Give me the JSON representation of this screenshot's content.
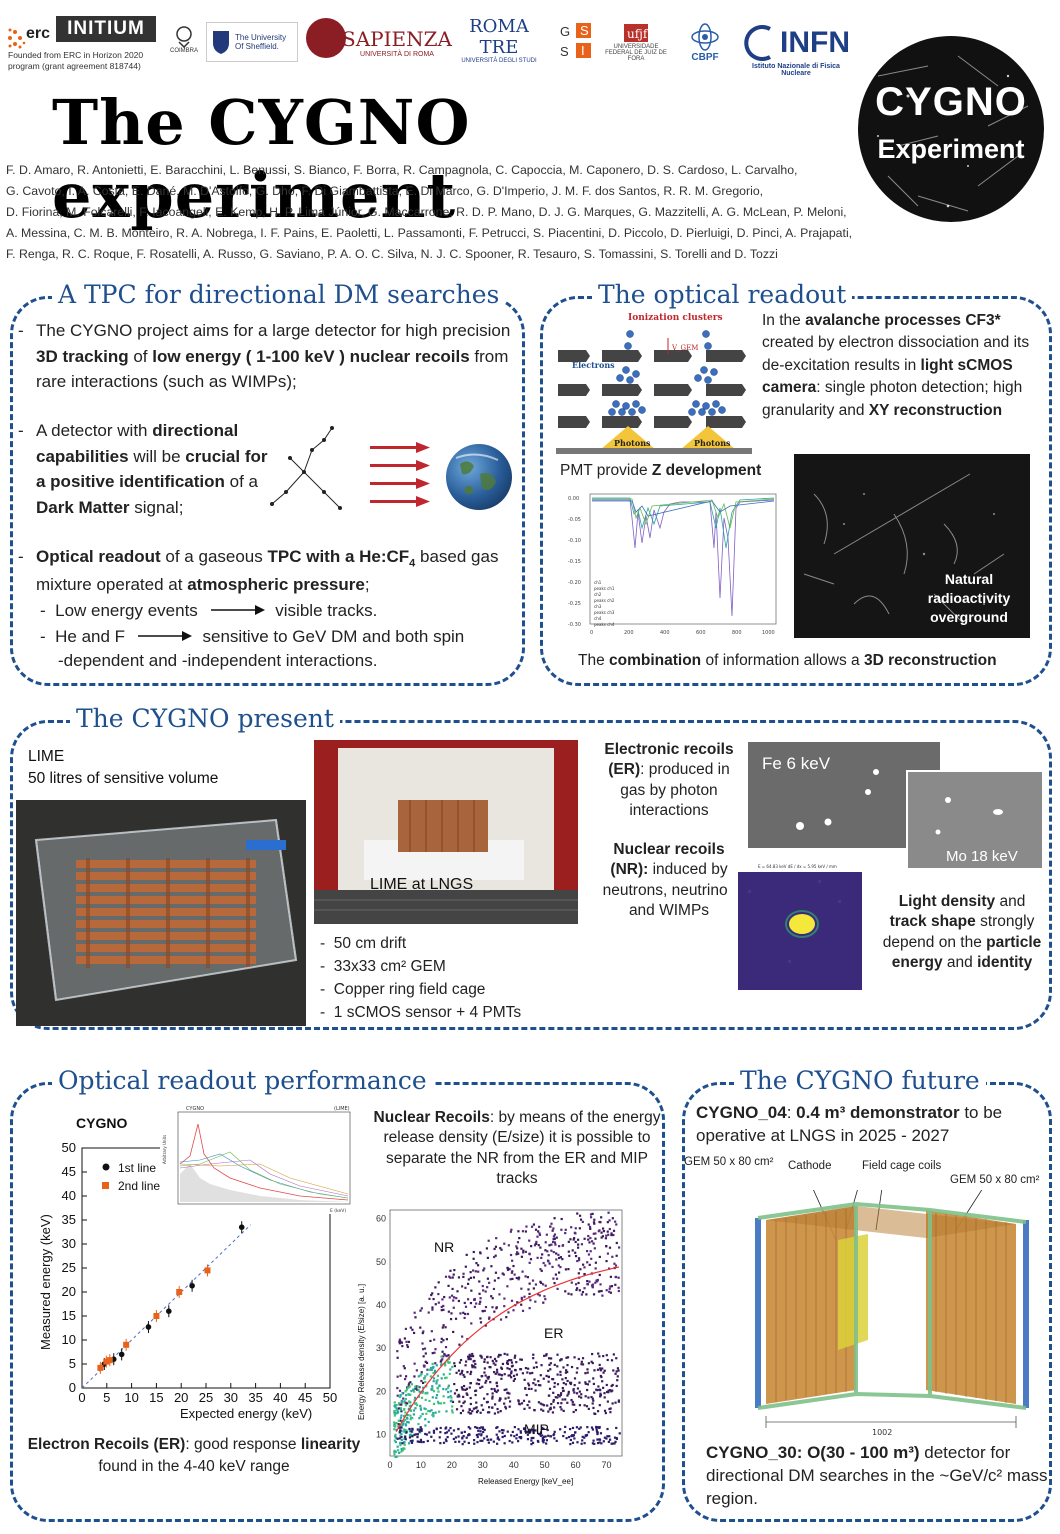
{
  "header": {
    "erc_label": "erc",
    "initium_label": "INITIUM",
    "funding_note": "Founded from ERC in Horizon 2020 program (grant agreement 818744)",
    "logos": [
      {
        "name": "coimbra",
        "text": "COIMBRA"
      },
      {
        "name": "sheffield",
        "text": "The University Of Sheffield."
      },
      {
        "name": "sapienza",
        "text": "SAPIENZA",
        "sub": "UNIVERSITÀ DI ROMA"
      },
      {
        "name": "romatre",
        "text": "ROMA TRE",
        "sub": "UNIVERSITÀ DEGLI STUDI"
      },
      {
        "name": "gssi",
        "text": "G S S I"
      },
      {
        "name": "ufjf",
        "text": "UNIVERSIDADE FEDERAL DE JUIZ DE FORA"
      },
      {
        "name": "cbpf",
        "text": "CBPF"
      },
      {
        "name": "infn",
        "text": "INFN",
        "sub": "Istituto Nazionale di Fisica Nucleare"
      }
    ],
    "title": "The CYGNO experiment",
    "badge_line1": "CYGNO",
    "badge_line2": "Experiment",
    "authors": [
      "F. D. Amaro, R. Antonietti, E. Baracchini, L. Benussi, S. Bianco, F. Borra, R. Campagnola, C. Capoccia, M. Caponero, D. S. Cardoso, L. Carvalho,",
      "G. Cavoto, I. A. Costa, E. Dané, M. D'Astolfo, G. Dho, F. Di Giambattista, E. Di Marco, G. D'Imperio, J. M. F. dos Santos,  R. R. M. Gregorio,",
      "D. Fiorina, M. Folcarelli, F. Iacoangeli, E. Kemp, H. P. Lima Júnior, G. Maccarrone, R. D. P. Mano, D. J. G. Marques, G. Mazzitelli, A. G. McLean, P. Meloni,",
      "A. Messina, C. M. B. Monteiro, R. A. Nobrega, I. F. Pains, E. Paoletti, L. Passamonti, F. Petrucci, S. Piacentini, D. Piccolo, D. Pierluigi, D. Pinci, A. Prajapati,",
      "F. Renga, R. C. Roque, F. Rosatelli, A. Russo, G. Saviano, P. A. O. C. Silva, N. J. C. Spooner, R. Tesauro, S. Tomassini, S. Torelli and D. Tozzi"
    ]
  },
  "tpc": {
    "title": "A TPC for directional DM searches",
    "p1_a": "The CYGNO project aims for a large detector for high precision ",
    "p1_b": "3D tracking",
    "p1_c": " of ",
    "p1_d": "low energy ( 1-100 keV ) nuclear recoils",
    "p1_e": " from rare interactions (such as WIMPs);",
    "p2_a": "A detector with ",
    "p2_b": "directional capabilities",
    "p2_c": " will be ",
    "p2_d": "crucial for a positive identification",
    "p2_e": " of a ",
    "p2_f": "Dark Matter",
    "p2_g": " signal;",
    "p3_a": "Optical readout",
    "p3_b": " of a gaseous ",
    "p3_c": "TPC with a He:CF",
    "p3_sub": "4",
    "p3_d": " based gas mixture operated at ",
    "p3_e": "atmospheric pressure",
    "p3_f": ";",
    "sub1_a": "Low energy events",
    "sub1_b": "visible tracks.",
    "sub2_a": "He and F",
    "sub2_b": "sensitive to GeV DM and both spin",
    "sub2_c": "-dependent and -independent interactions."
  },
  "optical": {
    "title": "The optical readout",
    "diagram_title": "Ionization clusters",
    "diagram_electrons": "Electrons",
    "diagram_vgem": "V_GEM",
    "diagram_photons1": "Photons",
    "diagram_photons2": "Photons",
    "text_a": "In the ",
    "text_b": "avalanche processes CF3*",
    "text_c": " created by electron dissociation and its de-excitation results in ",
    "text_d": "light sCMOS camera",
    "text_e": ": single photon detection; high granularity and ",
    "text_f": "XY reconstruction",
    "pmt_a": "PMT provide ",
    "pmt_b": "Z development",
    "natural": "Natural radioactivity overground",
    "combo_a": "The ",
    "combo_b": "combination",
    "combo_c": " of information allows a ",
    "combo_d": "3D reconstruction",
    "pmt_legend": [
      "ch1",
      "peaks ch1",
      "ch2",
      "peaks ch2",
      "ch3",
      "peaks ch3",
      "ch4",
      "peaks ch4"
    ],
    "pmt_yticks": [
      "0.00",
      "-0.05",
      "-0.10",
      "-0.15",
      "-0.20",
      "-0.25",
      "-0.30"
    ],
    "pmt_xticks": [
      "0",
      "200",
      "400",
      "600",
      "800",
      "1000"
    ]
  },
  "present": {
    "title": "The CYGNO present",
    "lime": "LIME",
    "lime_vol": "50 litres of sensitive volume",
    "lngs": "LIME at LNGS",
    "specs": [
      "50 cm drift",
      "33x33 cm² GEM",
      "Copper ring field cage",
      "1 sCMOS sensor + 4 PMTs"
    ],
    "er_a": "Electronic recoils (ER)",
    "er_b": ": produced in gas by photon interactions",
    "nr_a": "Nuclear recoils (NR):",
    "nr_b": " induced by neutrons, neutrinos and WIMPs",
    "fe": "Fe 6 keV",
    "mo": "Mo 18 keV",
    "light_a": "Light density",
    "light_b": " and ",
    "light_c": "track shape",
    "light_d": " strongly depend on the ",
    "light_e": "particle energy",
    "light_f": " and ",
    "light_g": "identity",
    "nr_img_header": "E = 64.83 keV   dE / dx = 5.95 keV / mm"
  },
  "performance": {
    "title": "Optical readout performance",
    "chart_label": "CYGNO",
    "legend_1": "1st line",
    "legend_2": "2nd line",
    "xlabel": "Expected energy (keV)",
    "ylabel": "Measured energy (keV)",
    "inset_title": "CYGNO",
    "inset_tag": "(LIME)",
    "inset_ylabel": "Arbitrary Units",
    "inset_xlabel": "E (keV)",
    "er_text_a": "Electron Recoils (ER)",
    "er_text_b": ": good response ",
    "er_text_c": "linearity",
    "er_text_d": " found in the 4-40 keV range",
    "nr_text_a": "Nuclear Recoils",
    "nr_text_b": ": by means of the energy release density (E/size) it is possible to separate the NR from the ER and MIP tracks",
    "scatter_nr": "NR",
    "scatter_er": "ER",
    "scatter_mip": "MIP",
    "scatter_xlabel": "Released Energy [keV_ee]",
    "scatter_ylabel": "Energy Release density (E/size) [a. u.]"
  },
  "future": {
    "title": "The CYGNO future",
    "c04_a": "CYGNO_04",
    "c04_b": ": ",
    "c04_c": "0.4 m³ demonstrator",
    "c04_d": " to be operative at LNGS in 2025 - 2027",
    "lbl_gem1": "GEM 50 x 80 cm²",
    "lbl_cathode": "Cathode",
    "lbl_fieldcage": "Field cage coils",
    "lbl_gem2": "GEM 50 x 80 cm²",
    "dim": "1002",
    "c30_a": "CYGNO_30",
    "c30_b": ": O(30 - 100 m³)",
    "c30_c": " detector for directional DM searches in the ~GeV/c² mass region."
  },
  "chart_data": [
    {
      "type": "scatter",
      "title": "CYGNO",
      "xlabel": "Expected energy (keV)",
      "ylabel": "Measured energy (keV)",
      "xlim": [
        0,
        50
      ],
      "ylim": [
        0,
        50
      ],
      "x_ticks": [
        0,
        5,
        10,
        15,
        20,
        25,
        30,
        35,
        40,
        45,
        50
      ],
      "y_ticks": [
        0,
        5,
        10,
        15,
        20,
        25,
        30,
        35,
        40,
        45,
        50
      ],
      "series": [
        {
          "name": "1st line",
          "color": "#111111",
          "x": [
            4.5,
            6.4,
            8.0,
            13.4,
            17.5,
            22.2,
            32.2
          ],
          "y": [
            5.0,
            6.0,
            7.0,
            12.7,
            16.0,
            21.3,
            33.5
          ]
        },
        {
          "name": "2nd line",
          "color": "#e8621a",
          "x": [
            3.7,
            4.9,
            5.6,
            8.9,
            15.0,
            19.6,
            25.3
          ],
          "y": [
            4.2,
            5.5,
            5.8,
            9.0,
            15.0,
            20.0,
            24.5
          ]
        }
      ]
    },
    {
      "type": "scatter",
      "title": "",
      "xlabel": "Released Energy [keV_ee]",
      "ylabel": "Energy Release density (E/size) [a. u.]",
      "xlim": [
        0,
        75
      ],
      "ylim": [
        5,
        62
      ],
      "x_ticks": [
        0,
        10,
        20,
        30,
        40,
        50,
        60,
        70
      ],
      "y_ticks": [
        10,
        20,
        30,
        40,
        50,
        60
      ],
      "series": [
        {
          "name": "NR",
          "description": "upper band"
        },
        {
          "name": "ER",
          "description": "middle band"
        },
        {
          "name": "MIP",
          "description": "bottom band"
        }
      ]
    }
  ]
}
